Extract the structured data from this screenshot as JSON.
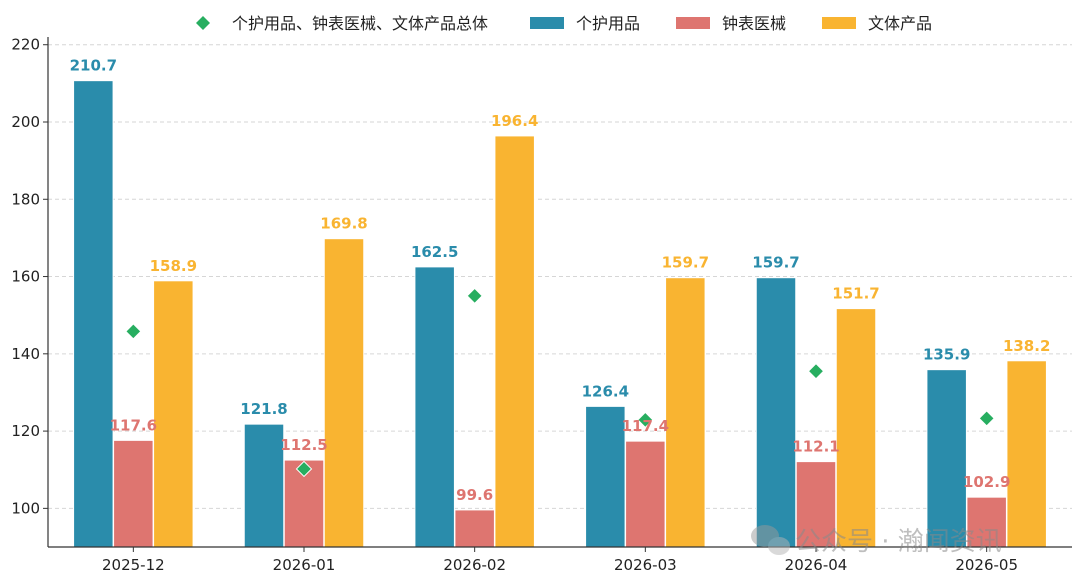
{
  "chart_data": {
    "type": "bar",
    "categories": [
      "2025-12",
      "2026-01",
      "2026-02",
      "2026-03",
      "2026-04",
      "2026-05"
    ],
    "series": [
      {
        "name": "个护用品",
        "color": "#2a8cab",
        "values": [
          210.7,
          121.8,
          162.5,
          126.4,
          159.7,
          135.9
        ]
      },
      {
        "name": "钟表医械",
        "color": "#de7570",
        "values": [
          117.6,
          112.5,
          99.6,
          117.4,
          112.1,
          102.9
        ]
      },
      {
        "name": "文体产品",
        "color": "#f9b431",
        "values": [
          158.9,
          169.8,
          196.4,
          159.7,
          151.7,
          138.2
        ]
      }
    ],
    "marker_series": {
      "name": "个护用品、钟表医械、文体产品总体",
      "color": "#27ae60",
      "marker": "diamond",
      "values": [
        145.8,
        110.2,
        155.0,
        122.9,
        135.5,
        123.3
      ]
    },
    "ylim": [
      90,
      222
    ],
    "yticks": [
      100,
      120,
      140,
      160,
      180,
      200,
      220
    ],
    "grid": "horizontal-dashed",
    "legend_position": "top-center"
  },
  "watermark": {
    "icon": "wechat-icon",
    "text": "公众号 · 瀚闻资讯"
  }
}
